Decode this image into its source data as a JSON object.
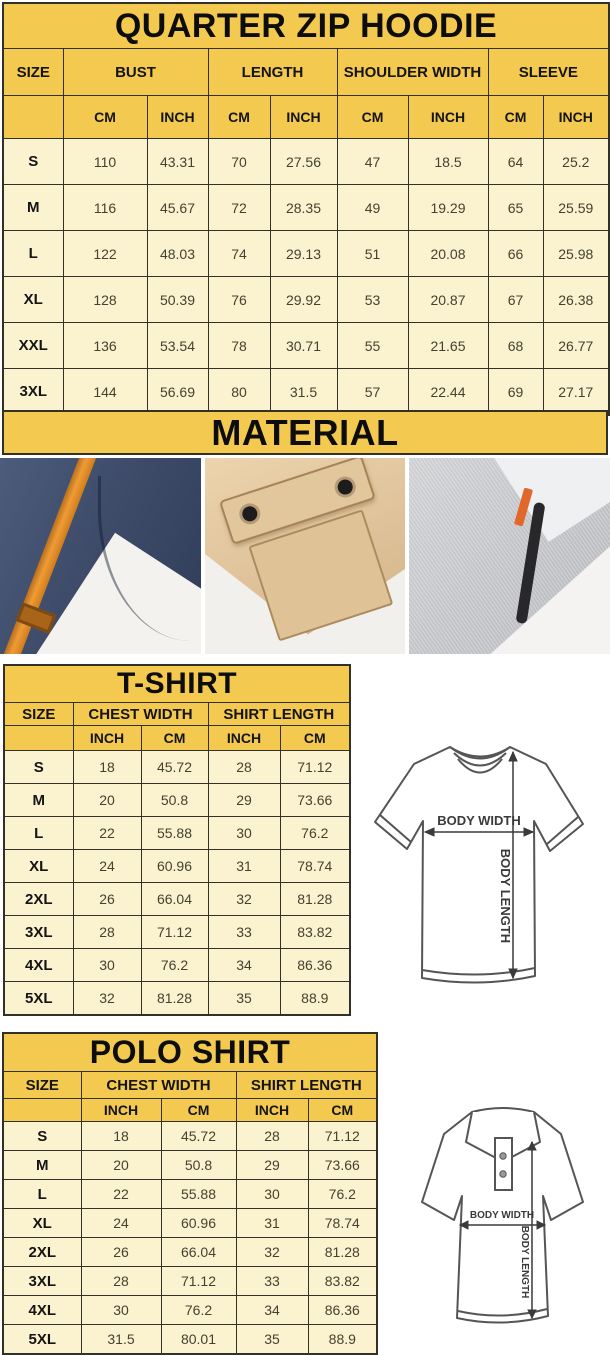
{
  "colors": {
    "band_yellow": "#f3c94f",
    "row_cream": "#fbf3d0",
    "table_border": "#33302a",
    "strap_orange": "#ef9c36",
    "zip_orange": "#e2672a"
  },
  "hoodie_chart": {
    "title": "QUARTER ZIP HOODIE",
    "col_groups": [
      "SIZE",
      "BUST",
      "LENGTH",
      "SHOULDER WIDTH",
      "SLEEVE"
    ],
    "units": [
      "CM",
      "INCH",
      "CM",
      "INCH",
      "CM",
      "INCH",
      "CM",
      "INCH"
    ],
    "rows": [
      [
        "S",
        "110",
        "43.31",
        "70",
        "27.56",
        "47",
        "18.5",
        "64",
        "25.2"
      ],
      [
        "M",
        "116",
        "45.67",
        "72",
        "28.35",
        "49",
        "19.29",
        "65",
        "25.59"
      ],
      [
        "L",
        "122",
        "48.03",
        "74",
        "29.13",
        "51",
        "20.08",
        "66",
        "25.98"
      ],
      [
        "XL",
        "128",
        "50.39",
        "76",
        "29.92",
        "53",
        "20.87",
        "67",
        "26.38"
      ],
      [
        "XXL",
        "136",
        "53.54",
        "78",
        "30.71",
        "55",
        "21.65",
        "68",
        "26.77"
      ],
      [
        "3XL",
        "144",
        "56.69",
        "80",
        "31.5",
        "57",
        "22.44",
        "69",
        "27.17"
      ]
    ]
  },
  "material": {
    "title": "MATERIAL",
    "photos": [
      "navy-fleece-orange-strap",
      "khaki-snap-pocket",
      "gray-fleece-zipper"
    ]
  },
  "tshirt_chart": {
    "title": "T-SHIRT",
    "col_groups": [
      "SIZE",
      "CHEST WIDTH",
      "SHIRT LENGTH"
    ],
    "units": [
      "INCH",
      "CM",
      "INCH",
      "CM"
    ],
    "rows": [
      [
        "S",
        "18",
        "45.72",
        "28",
        "71.12"
      ],
      [
        "M",
        "20",
        "50.8",
        "29",
        "73.66"
      ],
      [
        "L",
        "22",
        "55.88",
        "30",
        "76.2"
      ],
      [
        "XL",
        "24",
        "60.96",
        "31",
        "78.74"
      ],
      [
        "2XL",
        "26",
        "66.04",
        "32",
        "81.28"
      ],
      [
        "3XL",
        "28",
        "71.12",
        "33",
        "83.82"
      ],
      [
        "4XL",
        "30",
        "76.2",
        "34",
        "86.36"
      ],
      [
        "5XL",
        "32",
        "81.28",
        "35",
        "88.9"
      ]
    ],
    "diagram_labels": {
      "width": "BODY WIDTH",
      "length": "BODY LENGTH"
    }
  },
  "polo_chart": {
    "title": "POLO SHIRT",
    "col_groups": [
      "SIZE",
      "CHEST WIDTH",
      "SHIRT LENGTH"
    ],
    "units": [
      "INCH",
      "CM",
      "INCH",
      "CM"
    ],
    "rows": [
      [
        "S",
        "18",
        "45.72",
        "28",
        "71.12"
      ],
      [
        "M",
        "20",
        "50.8",
        "29",
        "73.66"
      ],
      [
        "L",
        "22",
        "55.88",
        "30",
        "76.2"
      ],
      [
        "XL",
        "24",
        "60.96",
        "31",
        "78.74"
      ],
      [
        "2XL",
        "26",
        "66.04",
        "32",
        "81.28"
      ],
      [
        "3XL",
        "28",
        "71.12",
        "33",
        "83.82"
      ],
      [
        "4XL",
        "30",
        "76.2",
        "34",
        "86.36"
      ],
      [
        "5XL",
        "31.5",
        "80.01",
        "35",
        "88.9"
      ]
    ],
    "diagram_labels": {
      "width": "BODY WIDTH",
      "length": "BODY LENGTH"
    }
  }
}
